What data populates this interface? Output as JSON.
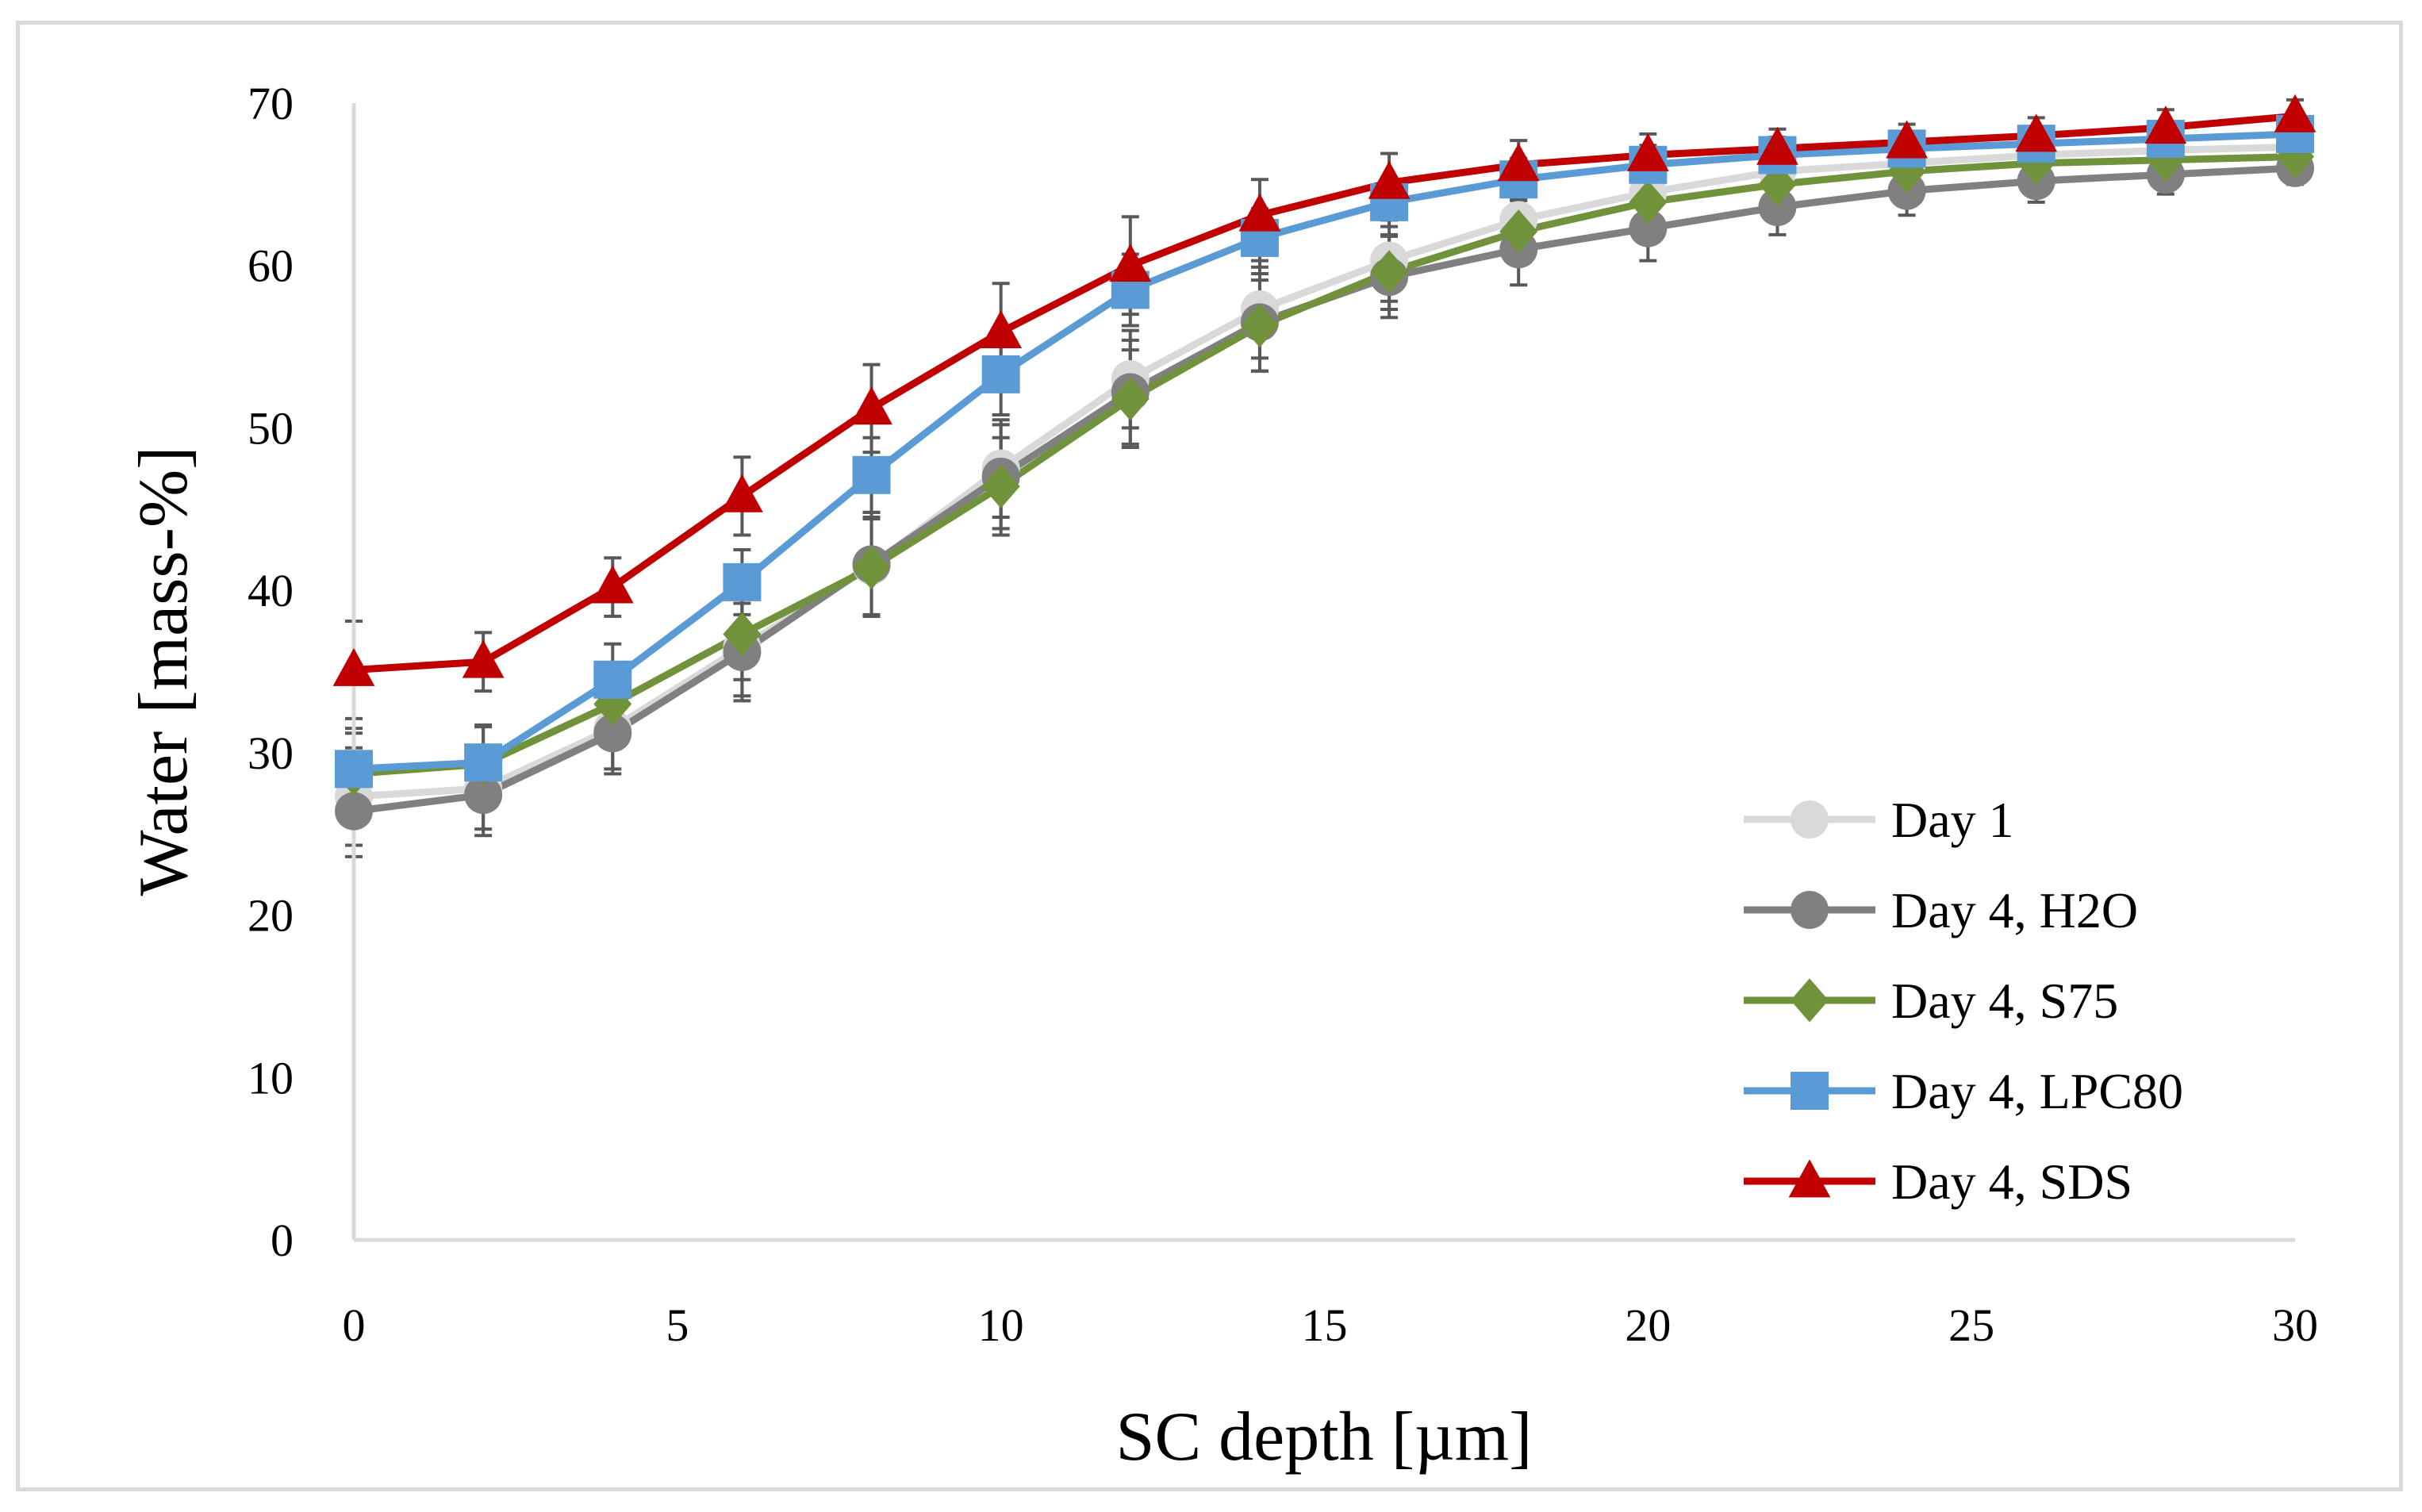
{
  "chart_data": {
    "type": "line",
    "xlabel": "SC depth [µm]",
    "ylabel": "Water [mass-%]",
    "xlim": [
      0,
      30
    ],
    "ylim": [
      0,
      70
    ],
    "xticks": [
      0,
      5,
      10,
      15,
      20,
      25,
      30
    ],
    "yticks": [
      0,
      10,
      20,
      30,
      40,
      50,
      60,
      70
    ],
    "grid": false,
    "legend_position": "bottom-right",
    "x": [
      0,
      2,
      4,
      6,
      8,
      10,
      12,
      14,
      16,
      18,
      20,
      22,
      24,
      26,
      28,
      30
    ],
    "series": [
      {
        "name": "Day 1",
        "color": "#d9d9d9",
        "marker": "circle",
        "values": [
          27.3,
          27.8,
          31.5,
          36.5,
          41.5,
          47.5,
          53.0,
          57.3,
          60.3,
          62.8,
          64.5,
          65.8,
          66.3,
          66.8,
          67.1,
          67.3
        ],
        "errors": [
          3.0,
          2.5,
          2.5,
          3.0,
          3.0,
          3.0,
          3.0,
          3.0,
          2.5,
          2.0,
          1.8,
          1.5,
          1.3,
          1.2,
          1.1,
          1.0
        ]
      },
      {
        "name": "Day 4, H2O",
        "color": "#808080",
        "marker": "circle",
        "values": [
          26.4,
          27.4,
          31.2,
          36.2,
          41.6,
          47.0,
          52.2,
          56.5,
          59.3,
          61.0,
          62.3,
          63.6,
          64.6,
          65.2,
          65.6,
          66.0
        ],
        "errors": [
          2.8,
          2.5,
          2.5,
          3.0,
          3.2,
          3.2,
          3.2,
          3.0,
          2.5,
          2.2,
          2.0,
          1.7,
          1.5,
          1.3,
          1.2,
          1.0
        ]
      },
      {
        "name": "Day 4, S75",
        "color": "#70923b",
        "marker": "diamond",
        "values": [
          28.7,
          29.3,
          33.0,
          37.3,
          41.4,
          46.4,
          51.8,
          56.3,
          59.6,
          62.1,
          63.9,
          65.0,
          65.8,
          66.3,
          66.5,
          66.7
        ],
        "errors": [
          2.5,
          2.3,
          2.5,
          2.8,
          3.0,
          3.0,
          3.0,
          2.8,
          2.3,
          2.0,
          1.7,
          1.5,
          1.3,
          1.2,
          1.1,
          1.0
        ]
      },
      {
        "name": "Day 4, LPC80",
        "color": "#5b9bd5",
        "marker": "square",
        "values": [
          29.0,
          29.4,
          34.5,
          40.5,
          47.1,
          53.3,
          58.5,
          61.7,
          63.9,
          65.3,
          66.2,
          66.8,
          67.2,
          67.5,
          67.8,
          68.1
        ],
        "errors": [
          2.5,
          2.3,
          2.2,
          2.0,
          2.3,
          2.5,
          2.2,
          1.8,
          1.5,
          1.3,
          1.2,
          1.1,
          1.0,
          1.0,
          1.0,
          1.0
        ]
      },
      {
        "name": "Day 4, SDS",
        "color": "#c00000",
        "marker": "triangle",
        "values": [
          35.1,
          35.6,
          40.2,
          45.8,
          51.2,
          55.9,
          60.0,
          63.1,
          65.1,
          66.2,
          66.8,
          67.2,
          67.6,
          68.0,
          68.5,
          69.2
        ],
        "errors": [
          3.0,
          1.8,
          1.8,
          2.4,
          2.7,
          3.0,
          3.0,
          2.2,
          1.8,
          1.5,
          1.3,
          1.2,
          1.1,
          1.1,
          1.1,
          1.0
        ]
      }
    ]
  }
}
